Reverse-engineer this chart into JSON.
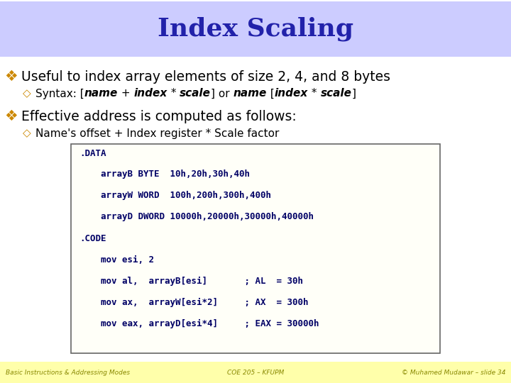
{
  "title": "Index Scaling",
  "title_color": "#2222aa",
  "title_bg": "#ccccff",
  "slide_bg": "#ffffff",
  "footer_bg": "#ffffaa",
  "bullet1": "Useful to index array elements of size 2, 4, and 8 bytes",
  "bullet2": "Effective address is computed as follows:",
  "sub_bullet2": "Name's offset + Index register * Scale factor",
  "syntax_parts": [
    [
      "Syntax: [",
      false
    ],
    [
      "name",
      true
    ],
    [
      " + ",
      false
    ],
    [
      "index",
      true
    ],
    [
      " * ",
      false
    ],
    [
      "scale",
      true
    ],
    [
      "] or ",
      false
    ],
    [
      "name",
      true
    ],
    [
      " [",
      false
    ],
    [
      "index",
      true
    ],
    [
      " * ",
      false
    ],
    [
      "scale",
      true
    ],
    [
      "]",
      false
    ]
  ],
  "code_lines": [
    ".DATA",
    "    arrayB BYTE  10h,20h,30h,40h",
    "    arrayW WORD  100h,200h,300h,400h",
    "    arrayD DWORD 10000h,20000h,30000h,40000h",
    ".CODE",
    "    mov esi, 2",
    "    mov al,  arrayB[esi]       ; AL  = 30h",
    "    mov ax,  arrayW[esi*2]     ; AX  = 300h",
    "    mov eax, arrayD[esi*4]     ; EAX = 30000h"
  ],
  "footer_left": "Basic Instructions & Addressing Modes",
  "footer_center": "COE 205 – KFUPM",
  "footer_right": "© Muhamed Mudawar – slide 34"
}
